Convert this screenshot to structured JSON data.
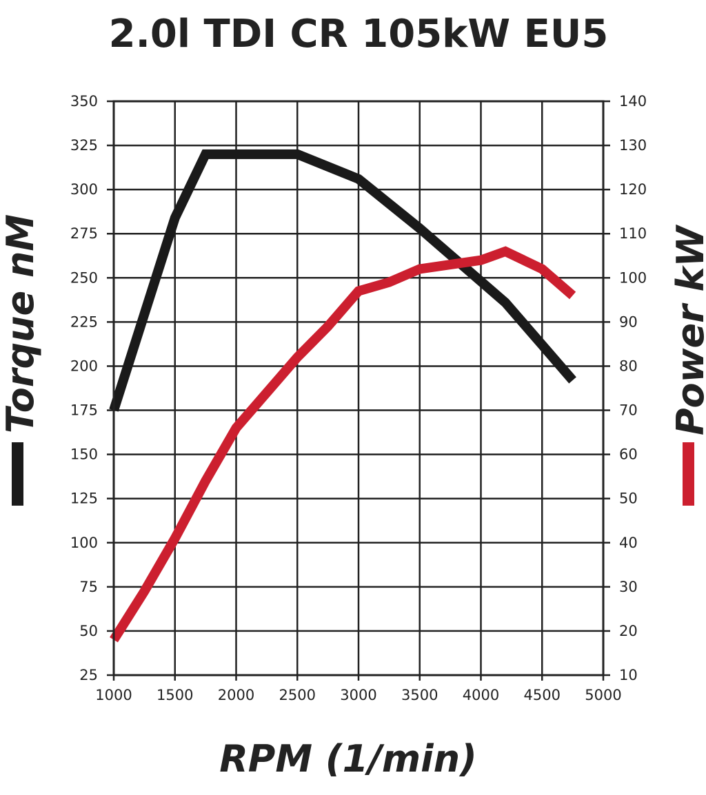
{
  "chart_data": {
    "type": "line",
    "title": "2.0l TDI CR 105kW EU5",
    "xlabel": "RPM (1/min)",
    "ylabel_left": "Torque nM",
    "ylabel_right": "Power kW",
    "xlim": [
      1000,
      5000
    ],
    "ylim_left": [
      25,
      350
    ],
    "ylim_right": [
      10,
      140
    ],
    "x_ticks": [
      "1000",
      "1500",
      "2000",
      "2500",
      "3000",
      "3500",
      "4000",
      "4500",
      "5000"
    ],
    "y_left_ticks": [
      "350",
      "325",
      "300",
      "275",
      "250",
      "225",
      "200",
      "175",
      "150",
      "125",
      "100",
      "75",
      "50",
      "25"
    ],
    "y_right_ticks": [
      "140",
      "130",
      "120",
      "110",
      "100",
      "90",
      "80",
      "70",
      "60",
      "50",
      "40",
      "30",
      "20",
      "10"
    ],
    "grid": true,
    "legend": "axis-side color bars",
    "series": [
      {
        "name": "Torque nM",
        "axis": "left",
        "color": "#1a1a1a",
        "x": [
          1000,
          1500,
          1750,
          2000,
          2500,
          3000,
          3500,
          4000,
          4200,
          4500,
          4750
        ],
        "y": [
          175,
          284,
          320,
          320,
          320,
          306,
          278,
          248,
          236,
          212,
          192
        ]
      },
      {
        "name": "Power kW",
        "axis": "right",
        "color": "#cc1f2f",
        "x": [
          1000,
          1250,
          1500,
          1750,
          2000,
          2250,
          2500,
          2750,
          3000,
          3250,
          3500,
          3750,
          4000,
          4200,
          4500,
          4750
        ],
        "y": [
          18,
          29,
          41,
          54,
          66,
          74,
          82,
          89,
          97,
          99,
          102,
          103,
          104,
          106,
          102,
          96
        ]
      }
    ]
  }
}
